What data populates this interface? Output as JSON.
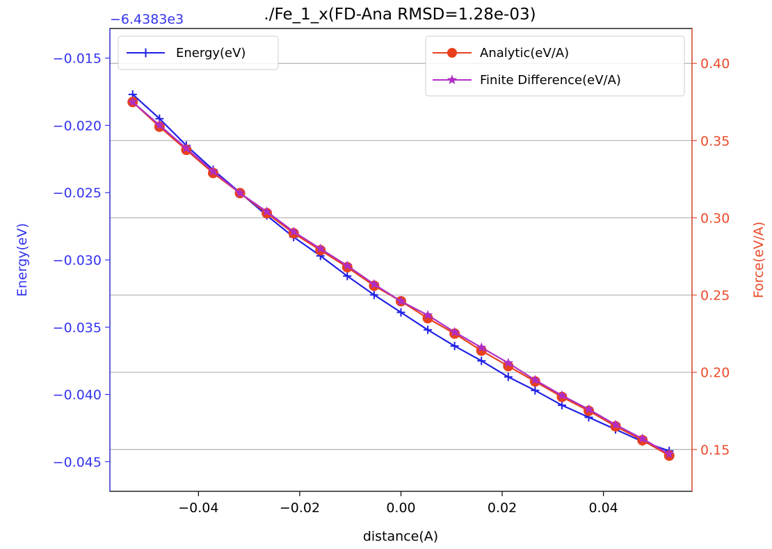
{
  "chart_data": {
    "type": "line",
    "title": "./Fe_1_x(FD-Ana RMSD=1.28e-03)",
    "xlabel": "distance(A)",
    "ylabel_left": "Energy(eV)",
    "ylabel_right": "Force(eV/A)",
    "offset_text": "−6.4383e3",
    "colors": {
      "energy": "#1f1fe6",
      "analytic": "#e8401c",
      "fd": "#b02ec4",
      "grid": "#b0b0b0",
      "left_axis": "#3333ee",
      "right_axis": "#ea4a2a"
    },
    "xlim": [
      -0.0575,
      0.0575
    ],
    "ylim_left": [
      -0.0472,
      -0.0128
    ],
    "ylim_right": [
      0.1229,
      0.4226
    ],
    "x_ticks": [
      -0.04,
      -0.02,
      0.0,
      0.02,
      0.04
    ],
    "x_tick_labels": [
      "−0.04",
      "−0.02",
      "0.00",
      "0.02",
      "0.04"
    ],
    "y_left_ticks": [
      -0.045,
      -0.04,
      -0.035,
      -0.03,
      -0.025,
      -0.02,
      -0.015
    ],
    "y_left_tick_labels": [
      "−0.045",
      "−0.040",
      "−0.035",
      "−0.030",
      "−0.025",
      "−0.020",
      "−0.015"
    ],
    "y_right_ticks": [
      0.15,
      0.2,
      0.25,
      0.3,
      0.35,
      0.4
    ],
    "y_right_tick_labels": [
      "0.15",
      "0.20",
      "0.25",
      "0.30",
      "0.35",
      "0.40"
    ],
    "x": [
      -0.053,
      -0.0477,
      -0.0424,
      -0.0371,
      -0.0318,
      -0.0265,
      -0.0212,
      -0.0159,
      -0.0106,
      -0.0053,
      0.0,
      0.0053,
      0.0106,
      0.0159,
      0.0212,
      0.0265,
      0.0318,
      0.0371,
      0.0424,
      0.0477,
      0.053
    ],
    "series": [
      {
        "name": "Energy(eV)",
        "axis": "left",
        "marker": "plus",
        "values": [
          -0.0177,
          -0.0195,
          -0.0215,
          -0.0233,
          -0.025,
          -0.0267,
          -0.0283,
          -0.0297,
          -0.0312,
          -0.0326,
          -0.0339,
          -0.0352,
          -0.0364,
          -0.0375,
          -0.0387,
          -0.0397,
          -0.0408,
          -0.0417,
          -0.0426,
          -0.0435,
          -0.0442
        ]
      },
      {
        "name": "Analytic(eV/A)",
        "axis": "right",
        "marker": "circle",
        "values": [
          0.375,
          0.359,
          0.344,
          0.329,
          0.316,
          0.303,
          0.29,
          0.279,
          0.268,
          0.256,
          0.246,
          0.235,
          0.225,
          0.214,
          0.204,
          0.194,
          0.184,
          0.175,
          0.165,
          0.156,
          0.146
        ]
      },
      {
        "name": "Finite Difference(eV/A)",
        "axis": "right",
        "marker": "star",
        "values": [
          0.375,
          0.36,
          0.345,
          0.33,
          0.316,
          0.304,
          0.291,
          0.28,
          0.269,
          0.257,
          0.246,
          0.237,
          0.226,
          0.216,
          0.206,
          0.195,
          0.185,
          0.176,
          0.166,
          0.157,
          0.147
        ]
      }
    ],
    "legend_left": [
      "Energy(eV)"
    ],
    "legend_right": [
      "Analytic(eV/A)",
      "Finite Difference(eV/A)"
    ]
  }
}
